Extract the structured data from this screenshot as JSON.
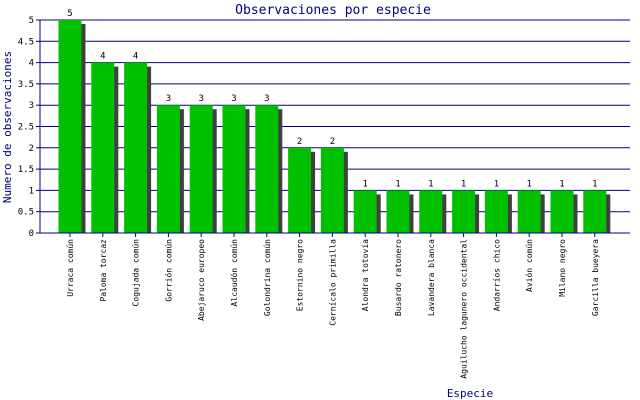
{
  "chart_data": {
    "type": "bar",
    "title": "Observaciones por especie",
    "xlabel": "Especie",
    "ylabel": "Numero de observaciones",
    "ylim": [
      0,
      5
    ],
    "ytick_step": 0.5,
    "grid": true,
    "legend": "none",
    "colors": {
      "bar": "#00c000",
      "bar_shadow": "#404040",
      "grid": "#00007f",
      "axis": "#00007f",
      "text": "#00007f",
      "label": "#000000"
    },
    "categories": [
      "Urraca común",
      "Paloma torcaz",
      "Cogujada común",
      "Gorrión común",
      "Abejaruco europeo",
      "Alcaudón común",
      "Golondrina común",
      "Estornino negro",
      "Cernícalo primilla",
      "Alondra totovía",
      "Busardo ratonero",
      "Lavandera blanca",
      "Aguilucho lagunero occidental",
      "Andarríos chico",
      "Avión común",
      "Milano negro",
      "Garcilla bueyera"
    ],
    "values": [
      5,
      4,
      4,
      3,
      3,
      3,
      3,
      2,
      2,
      1,
      1,
      1,
      1,
      1,
      1,
      1,
      1
    ]
  }
}
